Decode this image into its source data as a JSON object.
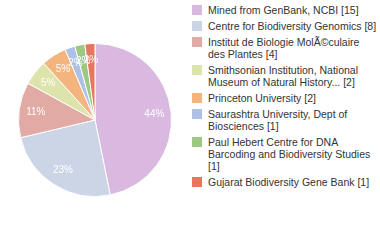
{
  "chart_data": {
    "type": "pie",
    "categories": [
      "Mined from GenBank, NCBI [15]",
      "Centre for Biodiversity Genomics [8]",
      "Institut de Biologie MolÃ©culaire des Plantes [4]",
      "Smithsonian Institution, National Museum of Natural History... [2]",
      "Princeton University [2]",
      "Saurashtra University, Dept of Biosciences [1]",
      "Paul Hebert Centre for DNA Barcoding and Biodiversity Studies [1]",
      "Gujarat Biodiversity Gene Bank [1]"
    ],
    "values": [
      44,
      23,
      11,
      5,
      5,
      2,
      2,
      2
    ],
    "value_labels": [
      "44%",
      "23%",
      "11%",
      "5%",
      "5%",
      "2%",
      "2%",
      "2%"
    ],
    "colors": [
      "#d9b9df",
      "#cbd5e6",
      "#e2aaa4",
      "#dde4ab",
      "#f3b47e",
      "#afc0e6",
      "#9cc882",
      "#e7765f"
    ],
    "data_labels": true,
    "legend": "right"
  }
}
